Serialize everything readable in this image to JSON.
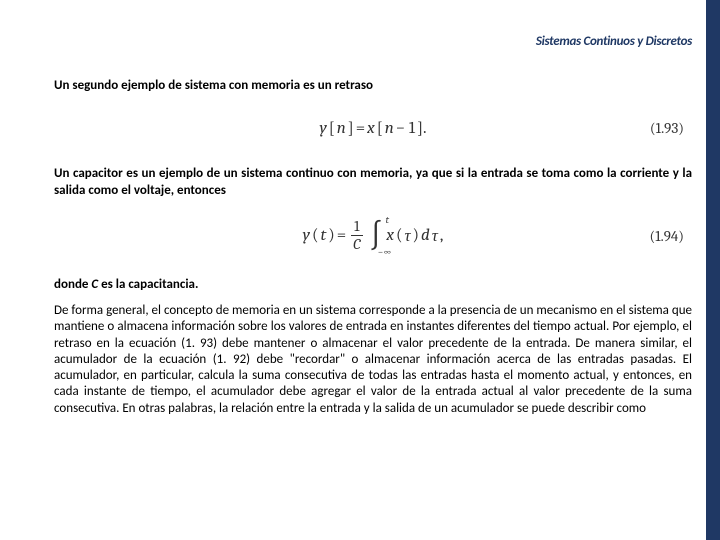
{
  "header": {
    "title": "Sistemas Continuos y Discretos"
  },
  "intro1": "Un segundo ejemplo de sistema con memoria es un retraso",
  "eq1": {
    "lhs_y": "y",
    "lhs_br_open": "[",
    "lhs_n": "n",
    "lhs_br_close": "]",
    "equals": " = ",
    "rhs_x": "x",
    "rhs_br_open": "[",
    "rhs_n": "n",
    "rhs_minus": " − 1",
    "rhs_br_close": "].",
    "label": "(1.93)"
  },
  "intro2": "Un capacitor es un ejemplo de un sistema continuo con memoria, ya que si la entrada se toma como la corriente y la salida como el voltaje, entonces",
  "eq2": {
    "lhs_y": "y",
    "lhs_paren_open": "(",
    "lhs_t": "t",
    "lhs_paren_close": ")",
    "equals": " = ",
    "frac_num": "1",
    "frac_den": "C",
    "int_upper": "t",
    "int_lower": "−∞",
    "rhs_x": "x",
    "rhs_paren_open": "(",
    "rhs_tau": "τ",
    "rhs_paren_close": ")",
    "rhs_d": "d",
    "rhs_tau2": "τ",
    "rhs_comma": ",",
    "label": "(1.94)"
  },
  "donde": {
    "pre": "donde ",
    "c": "C",
    "post": " es la capacitancia."
  },
  "body": "De forma general, el concepto de memoria en un sistema corresponde a la presencia de un mecanismo en el sistema que mantiene o almacena información sobre los valores de entrada en instantes diferentes del tiempo actual. Por ejemplo, el retraso en la ecuación (1. 93) debe mantener o almacenar el valor precedente de la entrada. De manera similar, el acumulador de la ecuación (1. 92) debe \"recordar\" o almacenar información acerca de las entradas pasadas. El acumulador, en particular, calcula la suma consecutiva de todas las entradas hasta el momento actual, y entonces, en cada instante de tiempo, el acumulador debe agregar el valor de la entrada actual al valor precedente de la suma consecutiva. En otras palabras, la relación entre la entrada y la salida de un acumulador se puede describir como"
}
